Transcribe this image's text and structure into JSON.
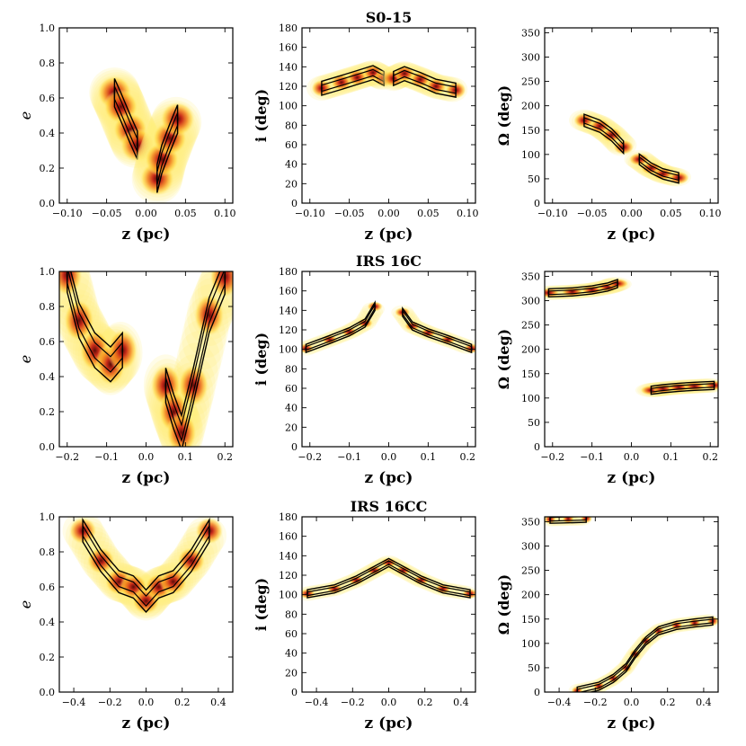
{
  "figure": {
    "description_free": true,
    "colors": {
      "halo": "#ffef7a",
      "mid": "#f7a21a",
      "core": "#d8321a",
      "dense": "#6b0f0a",
      "line": "#000000"
    }
  },
  "chart_data": [
    {
      "type": "scatter",
      "row": 0,
      "col": 0,
      "title": "",
      "xlabel": "z (pc)",
      "ylabel": "e",
      "xlim": [
        -0.11,
        0.11
      ],
      "ylim": [
        0.0,
        1.0
      ],
      "xticks": [
        -0.1,
        -0.05,
        0.0,
        0.05,
        0.1
      ],
      "xticklabels": [
        "−0.10",
        "−0.05",
        "0.00",
        "0.05",
        "0.10"
      ],
      "yticks": [
        0.0,
        0.2,
        0.4,
        0.6,
        0.8,
        1.0
      ],
      "yticklabels": [
        "0.0",
        "0.2",
        "0.4",
        "0.6",
        "0.8",
        "1.0"
      ],
      "clusters": [
        {
          "points": [
            [
              -0.04,
              0.63
            ],
            [
              -0.032,
              0.55
            ],
            [
              -0.02,
              0.42
            ],
            [
              -0.011,
              0.33
            ]
          ],
          "w": 0.02,
          "h": 0.09
        },
        {
          "points": [
            [
              0.014,
              0.14
            ],
            [
              0.02,
              0.25
            ],
            [
              0.03,
              0.37
            ],
            [
              0.04,
              0.48
            ]
          ],
          "w": 0.02,
          "h": 0.09
        }
      ]
    },
    {
      "type": "scatter",
      "row": 0,
      "col": 1,
      "title": "S0-15",
      "xlabel": "z (pc)",
      "ylabel": "i (deg)",
      "xlim": [
        -0.11,
        0.11
      ],
      "ylim": [
        0,
        180
      ],
      "xticks": [
        -0.1,
        -0.05,
        0.0,
        0.05,
        0.1
      ],
      "xticklabels": [
        "−0.10",
        "−0.05",
        "0.00",
        "0.05",
        "0.10"
      ],
      "yticks": [
        0,
        20,
        40,
        60,
        80,
        100,
        120,
        140,
        160,
        180
      ],
      "yticklabels": [
        "0",
        "20",
        "40",
        "60",
        "80",
        "100",
        "120",
        "140",
        "160",
        "180"
      ],
      "clusters": [
        {
          "points": [
            [
              -0.085,
              118
            ],
            [
              -0.06,
              124
            ],
            [
              -0.04,
              129
            ],
            [
              -0.02,
              134
            ],
            [
              -0.006,
              128
            ]
          ],
          "w": 0.012,
          "h": 8
        },
        {
          "points": [
            [
              0.006,
              128
            ],
            [
              0.02,
              133
            ],
            [
              0.04,
              127
            ],
            [
              0.06,
              120
            ],
            [
              0.085,
              116
            ]
          ],
          "w": 0.012,
          "h": 8
        }
      ]
    },
    {
      "type": "scatter",
      "row": 0,
      "col": 2,
      "title": "",
      "xlabel": "z (pc)",
      "ylabel": "Ω (deg)",
      "xlim": [
        -0.11,
        0.11
      ],
      "ylim": [
        0,
        360
      ],
      "xticks": [
        -0.1,
        -0.05,
        0.0,
        0.05,
        0.1
      ],
      "xticklabels": [
        "−0.10",
        "−0.05",
        "0.00",
        "0.05",
        "0.10"
      ],
      "yticks": [
        0,
        50,
        100,
        150,
        200,
        250,
        300,
        350
      ],
      "yticklabels": [
        "0",
        "50",
        "100",
        "150",
        "200",
        "250",
        "300",
        "350"
      ],
      "clusters": [
        {
          "points": [
            [
              -0.06,
              170
            ],
            [
              -0.04,
              158
            ],
            [
              -0.025,
              140
            ],
            [
              -0.01,
              115
            ]
          ],
          "w": 0.012,
          "h": 14
        },
        {
          "points": [
            [
              0.01,
              90
            ],
            [
              0.025,
              72
            ],
            [
              0.04,
              60
            ],
            [
              0.06,
              52
            ]
          ],
          "w": 0.012,
          "h": 12
        }
      ]
    },
    {
      "type": "scatter",
      "row": 1,
      "col": 0,
      "title": "",
      "xlabel": "z (pc)",
      "ylabel": "e",
      "xlim": [
        -0.22,
        0.22
      ],
      "ylim": [
        0.0,
        1.0
      ],
      "xticks": [
        -0.2,
        -0.1,
        0.0,
        0.1,
        0.2
      ],
      "xticklabels": [
        "−0.2",
        "−0.1",
        "0.0",
        "0.1",
        "0.2"
      ],
      "yticks": [
        0.0,
        0.2,
        0.4,
        0.6,
        0.8,
        1.0
      ],
      "yticklabels": [
        "0.0",
        "0.2",
        "0.4",
        "0.6",
        "0.8",
        "1.0"
      ],
      "clusters": [
        {
          "points": [
            [
              -0.2,
              0.98
            ],
            [
              -0.17,
              0.72
            ],
            [
              -0.13,
              0.55
            ],
            [
              -0.09,
              0.47
            ],
            [
              -0.06,
              0.55
            ]
          ],
          "w": 0.035,
          "h": 0.11
        },
        {
          "points": [
            [
              0.05,
              0.35
            ],
            [
              0.07,
              0.2
            ],
            [
              0.09,
              0.08
            ],
            [
              0.12,
              0.35
            ],
            [
              0.16,
              0.75
            ],
            [
              0.2,
              0.97
            ]
          ],
          "w": 0.035,
          "h": 0.11
        }
      ]
    },
    {
      "type": "scatter",
      "row": 1,
      "col": 1,
      "title": "IRS 16C",
      "xlabel": "z (pc)",
      "ylabel": "i (deg)",
      "xlim": [
        -0.22,
        0.22
      ],
      "ylim": [
        0,
        180
      ],
      "xticks": [
        -0.2,
        -0.1,
        0.0,
        0.1,
        0.2
      ],
      "xticklabels": [
        "−0.2",
        "−0.1",
        "0.0",
        "0.1",
        "0.2"
      ],
      "yticks": [
        0,
        20,
        40,
        60,
        80,
        100,
        120,
        140,
        160,
        180
      ],
      "yticklabels": [
        "0",
        "20",
        "40",
        "60",
        "80",
        "100",
        "120",
        "140",
        "160",
        "180"
      ],
      "clusters": [
        {
          "points": [
            [
              -0.21,
              101
            ],
            [
              -0.15,
              110
            ],
            [
              -0.1,
              118
            ],
            [
              -0.06,
              127
            ],
            [
              -0.035,
              144
            ]
          ],
          "w": 0.018,
          "h": 4
        },
        {
          "points": [
            [
              0.035,
              138
            ],
            [
              0.06,
              124
            ],
            [
              0.1,
              117
            ],
            [
              0.15,
              110
            ],
            [
              0.21,
              101
            ]
          ],
          "w": 0.018,
          "h": 4
        }
      ]
    },
    {
      "type": "scatter",
      "row": 1,
      "col": 2,
      "title": "",
      "xlabel": "z (pc)",
      "ylabel": "Ω (deg)",
      "xlim": [
        -0.22,
        0.22
      ],
      "ylim": [
        0,
        360
      ],
      "xticks": [
        -0.2,
        -0.1,
        0.0,
        0.1,
        0.2
      ],
      "xticklabels": [
        "−0.2",
        "−0.1",
        "0.0",
        "0.1",
        "0.2"
      ],
      "yticks": [
        0,
        50,
        100,
        150,
        200,
        250,
        300,
        350
      ],
      "yticklabels": [
        "0",
        "50",
        "100",
        "150",
        "200",
        "250",
        "300",
        "350"
      ],
      "clusters": [
        {
          "points": [
            [
              -0.21,
              316
            ],
            [
              -0.15,
              318
            ],
            [
              -0.1,
              322
            ],
            [
              -0.06,
              328
            ],
            [
              -0.035,
              335
            ]
          ],
          "w": 0.025,
          "h": 7
        },
        {
          "points": [
            [
              0.05,
              116
            ],
            [
              0.08,
              119
            ],
            [
              0.12,
              122
            ],
            [
              0.16,
              124
            ],
            [
              0.21,
              126
            ]
          ],
          "w": 0.025,
          "h": 6
        }
      ]
    },
    {
      "type": "scatter",
      "row": 2,
      "col": 0,
      "title": "",
      "xlabel": "z (pc)",
      "ylabel": "e",
      "xlim": [
        -0.48,
        0.48
      ],
      "ylim": [
        0.0,
        1.0
      ],
      "xticks": [
        -0.4,
        -0.2,
        0.0,
        0.2,
        0.4
      ],
      "xticklabels": [
        "−0.4",
        "−0.2",
        "0.0",
        "0.2",
        "0.4"
      ],
      "yticks": [
        0.0,
        0.2,
        0.4,
        0.6,
        0.8,
        1.0
      ],
      "yticklabels": [
        "0.0",
        "0.2",
        "0.4",
        "0.6",
        "0.8",
        "1.0"
      ],
      "clusters": [
        {
          "points": [
            [
              -0.35,
              0.92
            ],
            [
              -0.25,
              0.75
            ],
            [
              -0.15,
              0.63
            ],
            [
              -0.07,
              0.6
            ],
            [
              0.0,
              0.52
            ],
            [
              0.07,
              0.6
            ],
            [
              0.15,
              0.63
            ],
            [
              0.25,
              0.75
            ],
            [
              0.35,
              0.92
            ]
          ],
          "w": 0.07,
          "h": 0.07
        }
      ]
    },
    {
      "type": "scatter",
      "row": 2,
      "col": 1,
      "title": "IRS 16CC",
      "xlabel": "z (pc)",
      "ylabel": "i (deg)",
      "xlim": [
        -0.48,
        0.48
      ],
      "ylim": [
        0,
        180
      ],
      "xticks": [
        -0.4,
        -0.2,
        0.0,
        0.2,
        0.4
      ],
      "xticklabels": [
        "−0.4",
        "−0.2",
        "0.0",
        "0.2",
        "0.4"
      ],
      "yticks": [
        0,
        20,
        40,
        60,
        80,
        100,
        120,
        140,
        160,
        180
      ],
      "yticklabels": [
        "0",
        "20",
        "40",
        "60",
        "80",
        "100",
        "120",
        "140",
        "160",
        "180"
      ],
      "clusters": [
        {
          "points": [
            [
              -0.45,
              101
            ],
            [
              -0.3,
              106
            ],
            [
              -0.18,
              115
            ],
            [
              -0.08,
              125
            ],
            [
              0.0,
              133
            ],
            [
              0.08,
              125
            ],
            [
              0.18,
              115
            ],
            [
              0.3,
              106
            ],
            [
              0.45,
              101
            ]
          ],
          "w": 0.04,
          "h": 4
        }
      ]
    },
    {
      "type": "scatter",
      "row": 2,
      "col": 2,
      "title": "",
      "xlabel": "z (pc)",
      "ylabel": "Ω (deg)",
      "xlim": [
        -0.48,
        0.48
      ],
      "ylim": [
        0,
        360
      ],
      "xticks": [
        -0.4,
        -0.2,
        0.0,
        0.2,
        0.4
      ],
      "xticklabels": [
        "−0.4",
        "−0.2",
        "0.0",
        "0.2",
        "0.4"
      ],
      "yticks": [
        0,
        50,
        100,
        150,
        200,
        250,
        300,
        350
      ],
      "yticklabels": [
        "0",
        "50",
        "100",
        "150",
        "200",
        "250",
        "300",
        "350"
      ],
      "clusters": [
        {
          "points": [
            [
              -0.45,
              355
            ],
            [
              -0.35,
              356
            ],
            [
              -0.25,
              357
            ]
          ],
          "w": 0.03,
          "h": 4
        },
        {
          "points": [
            [
              -0.3,
              2
            ],
            [
              -0.18,
              12
            ],
            [
              -0.1,
              28
            ],
            [
              -0.03,
              50
            ],
            [
              0.02,
              78
            ],
            [
              0.08,
              105
            ],
            [
              0.15,
              126
            ],
            [
              0.25,
              137
            ],
            [
              0.35,
              142
            ],
            [
              0.45,
              146
            ]
          ],
          "w": 0.03,
          "h": 6
        }
      ]
    }
  ]
}
